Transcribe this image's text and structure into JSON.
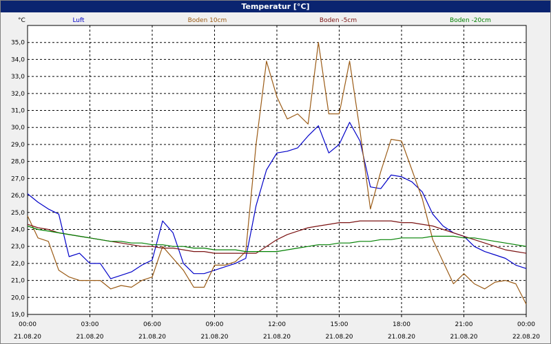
{
  "window": {
    "title": "Temperatur [°C]"
  },
  "chart_data": {
    "type": "line",
    "title": "Temperatur [°C]",
    "ylabel": "°C",
    "ylim": [
      19.0,
      36.0
    ],
    "yticks": [
      "19,0",
      "20,0",
      "21,0",
      "22,0",
      "23,0",
      "24,0",
      "25,0",
      "26,0",
      "27,0",
      "28,0",
      "29,0",
      "30,0",
      "31,0",
      "32,0",
      "33,0",
      "34,0",
      "35,0"
    ],
    "xticks": [
      {
        "time": "00:00",
        "date": "21.08.20"
      },
      {
        "time": "03:00",
        "date": "21.08.20"
      },
      {
        "time": "06:00",
        "date": "21.08.20"
      },
      {
        "time": "09:00",
        "date": "21.08.20"
      },
      {
        "time": "12:00",
        "date": "21.08.20"
      },
      {
        "time": "15:00",
        "date": "21.08.20"
      },
      {
        "time": "18:00",
        "date": "21.08.20"
      },
      {
        "time": "21:00",
        "date": "21.08.20"
      },
      {
        "time": "00:00",
        "date": "22.08.20"
      }
    ],
    "x_hours": [
      0,
      0.5,
      1,
      1.5,
      2,
      2.5,
      3,
      3.5,
      4,
      4.5,
      5,
      5.5,
      6,
      6.5,
      7,
      7.5,
      8,
      8.5,
      9,
      9.5,
      10,
      10.5,
      11,
      11.5,
      12,
      12.5,
      13,
      13.5,
      14,
      14.5,
      15,
      15.5,
      16,
      16.5,
      17,
      17.5,
      18,
      18.5,
      19,
      19.5,
      20,
      20.5,
      21,
      21.5,
      22,
      22.5,
      23,
      23.5,
      24
    ],
    "grid": true,
    "legend": "top",
    "series": [
      {
        "name": "Luft",
        "color": "#0000c8",
        "values": [
          26.1,
          25.6,
          25.2,
          24.9,
          22.4,
          22.6,
          22.0,
          22.0,
          21.1,
          21.3,
          21.5,
          21.9,
          22.2,
          24.5,
          23.8,
          22.0,
          21.4,
          21.4,
          21.6,
          21.8,
          22.0,
          22.3,
          25.4,
          27.5,
          28.5,
          28.6,
          28.8,
          29.5,
          30.1,
          28.5,
          29.0,
          30.3,
          29.2,
          26.5,
          26.4,
          27.2,
          27.1,
          26.8,
          26.2,
          24.9,
          24.2,
          23.8,
          23.6,
          23.0,
          22.7,
          22.5,
          22.3,
          21.9,
          21.7
        ]
      },
      {
        "name": "Boden 10cm",
        "color": "#9a5a14",
        "values": [
          24.8,
          23.5,
          23.3,
          21.6,
          21.2,
          21.0,
          21.0,
          21.0,
          20.5,
          20.7,
          20.6,
          21.0,
          21.2,
          23.0,
          22.3,
          21.6,
          20.6,
          20.6,
          21.9,
          21.9,
          22.1,
          22.7,
          29.0,
          33.9,
          31.8,
          30.5,
          30.8,
          30.2,
          35.0,
          30.8,
          30.8,
          33.9,
          29.8,
          25.2,
          27.4,
          29.3,
          29.2,
          27.5,
          25.8,
          23.4,
          22.1,
          20.8,
          21.4,
          20.8,
          20.5,
          20.9,
          21.0,
          20.8,
          19.6
        ]
      },
      {
        "name": "Boden -5cm",
        "color": "#7a1010",
        "values": [
          24.3,
          24.1,
          24.0,
          23.8,
          23.7,
          23.6,
          23.5,
          23.4,
          23.3,
          23.2,
          23.1,
          23.0,
          23.0,
          22.9,
          22.9,
          22.8,
          22.7,
          22.7,
          22.6,
          22.6,
          22.6,
          22.6,
          22.6,
          23.0,
          23.4,
          23.7,
          23.9,
          24.1,
          24.2,
          24.3,
          24.4,
          24.4,
          24.5,
          24.5,
          24.5,
          24.5,
          24.4,
          24.4,
          24.3,
          24.2,
          24.0,
          23.8,
          23.6,
          23.4,
          23.2,
          23.0,
          22.8,
          22.7,
          22.6
        ]
      },
      {
        "name": "Boden -20cm",
        "color": "#008000",
        "values": [
          24.2,
          24.0,
          23.9,
          23.8,
          23.7,
          23.6,
          23.5,
          23.4,
          23.3,
          23.3,
          23.2,
          23.2,
          23.1,
          23.1,
          23.0,
          23.0,
          22.9,
          22.9,
          22.8,
          22.8,
          22.8,
          22.7,
          22.7,
          22.7,
          22.7,
          22.8,
          22.9,
          23.0,
          23.1,
          23.1,
          23.2,
          23.2,
          23.3,
          23.3,
          23.4,
          23.4,
          23.5,
          23.5,
          23.5,
          23.6,
          23.6,
          23.6,
          23.5,
          23.5,
          23.4,
          23.3,
          23.2,
          23.1,
          23.0
        ]
      }
    ]
  }
}
